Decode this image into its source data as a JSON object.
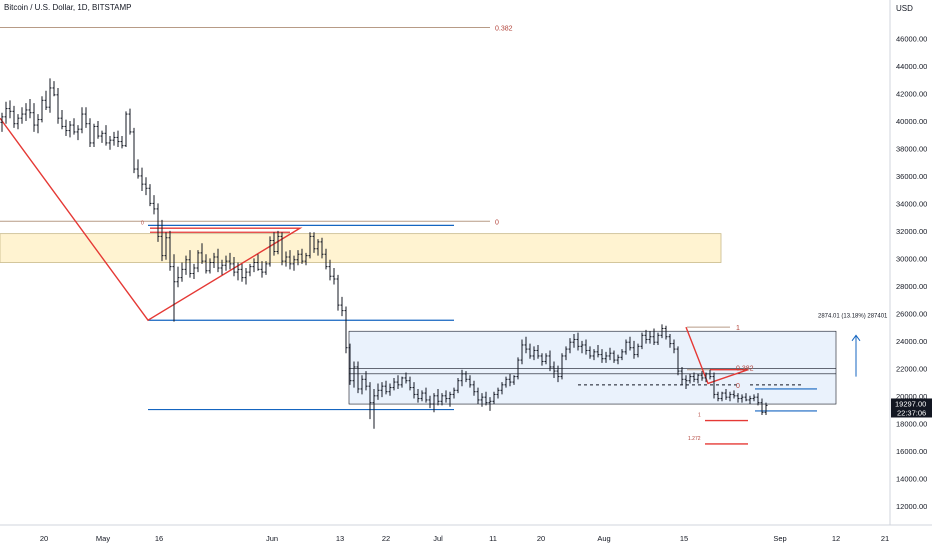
{
  "header": {
    "title": "Bitcoin / U.S. Dollar, 1D, BITSTAMP",
    "currency": "USD"
  },
  "colors": {
    "candle": "#131722",
    "fib_line": "#b79b86",
    "fib_label": "#b2433a",
    "blue_line": "#1565c0",
    "red_line": "#e53935",
    "yellow_zone": "#fff3d1",
    "blue_zone": "#eaf2fc",
    "measure": "#1565c0",
    "price_badge": "#131722"
  },
  "chart_data": {
    "type": "candlestick",
    "instrument": "Bitcoin / U.S. Dollar",
    "interval": "1D",
    "exchange": "BITSTAMP",
    "y_axis": {
      "unit": "USD",
      "range": [
        10600,
        48800
      ],
      "ticks": [
        "46000.00",
        "44000.00",
        "42000.00",
        "40000.00",
        "38000.00",
        "36000.00",
        "34000.00",
        "32000.00",
        "30000.00",
        "28000.00",
        "26000.00",
        "24000.00",
        "22000.00",
        "20000.00",
        "18000.00",
        "16000.00",
        "14000.00",
        "12000.00"
      ]
    },
    "x_axis": {
      "ticks": [
        "20",
        "May",
        "16",
        "Jun",
        "13",
        "22",
        "Jul",
        "11",
        "20",
        "Aug",
        "15",
        "Sep",
        "12",
        "21"
      ]
    },
    "grid": false,
    "last_price": "19297.00",
    "countdown": "22:37:06",
    "candles": [
      [
        39900,
        40600,
        39200,
        40300
      ],
      [
        40300,
        41400,
        39800,
        40900
      ],
      [
        40900,
        41500,
        40200,
        40700
      ],
      [
        40700,
        41100,
        39500,
        39800
      ],
      [
        39800,
        40500,
        39400,
        40200
      ],
      [
        40200,
        41000,
        39800,
        40500
      ],
      [
        40500,
        41300,
        40000,
        40800
      ],
      [
        40800,
        41600,
        40200,
        40600
      ],
      [
        40600,
        41300,
        39200,
        39700
      ],
      [
        39700,
        40500,
        39100,
        40100
      ],
      [
        40100,
        41800,
        39900,
        41500
      ],
      [
        41500,
        42200,
        40800,
        41000
      ],
      [
        41000,
        43100,
        40600,
        42400
      ],
      [
        42400,
        42900,
        41800,
        41900
      ],
      [
        41900,
        42400,
        39800,
        40200
      ],
      [
        40200,
        40800,
        39400,
        39600
      ],
      [
        39600,
        40100,
        38900,
        39300
      ],
      [
        39300,
        40000,
        38800,
        39700
      ],
      [
        39700,
        40200,
        39000,
        39200
      ],
      [
        39200,
        39700,
        38600,
        39400
      ],
      [
        39400,
        41000,
        39100,
        40500
      ],
      [
        40500,
        41000,
        39500,
        39800
      ],
      [
        39800,
        40200,
        38100,
        38400
      ],
      [
        38400,
        39800,
        38100,
        39600
      ],
      [
        39600,
        40000,
        38700,
        38900
      ],
      [
        38900,
        39300,
        38400,
        39100
      ],
      [
        39100,
        39700,
        38200,
        38400
      ],
      [
        38400,
        38900,
        37900,
        38600
      ],
      [
        38600,
        39200,
        38200,
        38800
      ],
      [
        38800,
        39300,
        38100,
        38500
      ],
      [
        38500,
        38900,
        38000,
        38200
      ],
      [
        38200,
        40700,
        38100,
        40500
      ],
      [
        40500,
        40900,
        39000,
        39200
      ],
      [
        39200,
        39500,
        36200,
        36500
      ],
      [
        36500,
        37200,
        35800,
        36000
      ],
      [
        36000,
        36600,
        34900,
        35400
      ],
      [
        35400,
        35900,
        34600,
        35100
      ],
      [
        35100,
        35400,
        33800,
        34000
      ],
      [
        34000,
        34600,
        33200,
        33600
      ],
      [
        33600,
        34000,
        31200,
        31600
      ],
      [
        31600,
        32800,
        29800,
        30200
      ],
      [
        30200,
        31900,
        29900,
        31500
      ],
      [
        31500,
        32000,
        29100,
        29400
      ],
      [
        29400,
        30300,
        25400,
        28300
      ],
      [
        28300,
        29400,
        27900,
        28600
      ],
      [
        28600,
        29700,
        28300,
        29200
      ],
      [
        29200,
        30200,
        28800,
        29900
      ],
      [
        29900,
        30600,
        28600,
        28900
      ],
      [
        28900,
        29600,
        28500,
        29300
      ],
      [
        29300,
        30600,
        29000,
        30400
      ],
      [
        30400,
        31100,
        29600,
        29800
      ],
      [
        29800,
        30300,
        28900,
        29100
      ],
      [
        29100,
        30000,
        28900,
        29700
      ],
      [
        29700,
        30400,
        29300,
        30100
      ],
      [
        30100,
        30700,
        29000,
        29300
      ],
      [
        29300,
        29900,
        28800,
        29500
      ],
      [
        29500,
        30200,
        29100,
        29800
      ],
      [
        29800,
        30400,
        29200,
        29600
      ],
      [
        29600,
        30100,
        28700,
        29000
      ],
      [
        29000,
        29700,
        28400,
        29200
      ],
      [
        29200,
        29600,
        28300,
        28600
      ],
      [
        28600,
        29300,
        28100,
        29000
      ],
      [
        29000,
        29600,
        28700,
        29400
      ],
      [
        29400,
        30000,
        29000,
        29700
      ],
      [
        29700,
        30300,
        29100,
        29200
      ],
      [
        29200,
        29800,
        28600,
        29000
      ],
      [
        29000,
        29800,
        28800,
        29600
      ],
      [
        29600,
        31600,
        29400,
        31300
      ],
      [
        31300,
        31900,
        30200,
        30500
      ],
      [
        30500,
        32000,
        30300,
        31600
      ],
      [
        31600,
        31900,
        29500,
        29800
      ],
      [
        29800,
        30500,
        29400,
        30100
      ],
      [
        30100,
        30600,
        29200,
        29600
      ],
      [
        29600,
        30200,
        29100,
        29900
      ],
      [
        29900,
        30600,
        29500,
        30300
      ],
      [
        30300,
        30700,
        29600,
        29800
      ],
      [
        29800,
        30400,
        29500,
        30200
      ],
      [
        30200,
        31900,
        30000,
        31600
      ],
      [
        31600,
        31900,
        30400,
        30700
      ],
      [
        30700,
        31400,
        30200,
        31200
      ],
      [
        31200,
        31500,
        30000,
        30300
      ],
      [
        30300,
        30700,
        29200,
        29400
      ],
      [
        29400,
        29900,
        28400,
        28700
      ],
      [
        28700,
        29300,
        28100,
        28500
      ],
      [
        28500,
        28800,
        26200,
        26600
      ],
      [
        26600,
        27200,
        25800,
        26200
      ],
      [
        26200,
        26500,
        23100,
        23500
      ],
      [
        23500,
        23800,
        20800,
        21100
      ],
      [
        21100,
        22500,
        20600,
        22100
      ],
      [
        22100,
        22500,
        20200,
        20500
      ],
      [
        20500,
        21500,
        20100,
        21200
      ],
      [
        21200,
        21800,
        20400,
        20700
      ],
      [
        20700,
        21000,
        18300,
        19500
      ],
      [
        19500,
        20500,
        17600,
        20000
      ],
      [
        20000,
        20900,
        19700,
        20400
      ],
      [
        20400,
        21000,
        19900,
        20700
      ],
      [
        20700,
        21100,
        20100,
        20300
      ],
      [
        20300,
        20900,
        20000,
        20600
      ],
      [
        20600,
        21300,
        20400,
        21000
      ],
      [
        21000,
        21500,
        20500,
        20800
      ],
      [
        20800,
        21400,
        20600,
        21300
      ],
      [
        21300,
        21700,
        20900,
        21100
      ],
      [
        21100,
        21400,
        20400,
        20600
      ],
      [
        20600,
        21000,
        19800,
        20100
      ],
      [
        20100,
        20500,
        19500,
        19800
      ],
      [
        19800,
        20400,
        19600,
        20200
      ],
      [
        20200,
        20600,
        19500,
        19700
      ],
      [
        19700,
        20000,
        19100,
        19400
      ],
      [
        19400,
        20200,
        18800,
        20000
      ],
      [
        20000,
        20500,
        19300,
        19600
      ],
      [
        19600,
        20200,
        19300,
        20000
      ],
      [
        20000,
        20400,
        19500,
        19800
      ],
      [
        19800,
        20300,
        19200,
        20100
      ],
      [
        20100,
        20600,
        19800,
        20400
      ],
      [
        20400,
        21300,
        20200,
        21100
      ],
      [
        21100,
        21900,
        20700,
        21600
      ],
      [
        21600,
        21800,
        21000,
        21200
      ],
      [
        21200,
        21500,
        20600,
        20800
      ],
      [
        20800,
        21100,
        20000,
        20300
      ],
      [
        20300,
        20600,
        19400,
        19700
      ],
      [
        19700,
        20200,
        19200,
        19900
      ],
      [
        19900,
        20300,
        19300,
        19500
      ],
      [
        19500,
        19900,
        18900,
        19600
      ],
      [
        19600,
        20300,
        19400,
        20100
      ],
      [
        20100,
        20600,
        19800,
        20400
      ],
      [
        20400,
        21000,
        20100,
        20800
      ],
      [
        20800,
        21400,
        20600,
        21200
      ],
      [
        21200,
        21600,
        20700,
        21000
      ],
      [
        21000,
        21500,
        20800,
        21400
      ],
      [
        21400,
        22800,
        21200,
        22600
      ],
      [
        22600,
        24100,
        22300,
        23700
      ],
      [
        23700,
        24300,
        23100,
        23400
      ],
      [
        23400,
        23800,
        22700,
        22900
      ],
      [
        22900,
        23600,
        22600,
        23300
      ],
      [
        23300,
        23700,
        22700,
        22900
      ],
      [
        22900,
        23100,
        22200,
        22500
      ],
      [
        22500,
        23100,
        22300,
        22900
      ],
      [
        22900,
        23300,
        21800,
        22100
      ],
      [
        22100,
        22500,
        21300,
        21800
      ],
      [
        21800,
        22200,
        21000,
        21400
      ],
      [
        21400,
        23100,
        21200,
        22900
      ],
      [
        22900,
        23600,
        22600,
        23400
      ],
      [
        23400,
        24200,
        23100,
        23900
      ],
      [
        23900,
        24500,
        23500,
        24100
      ],
      [
        24100,
        24600,
        23300,
        23600
      ],
      [
        23600,
        24000,
        23100,
        23700
      ],
      [
        23700,
        24100,
        23000,
        23300
      ],
      [
        23300,
        23600,
        22700,
        22900
      ],
      [
        22900,
        23400,
        22600,
        23200
      ],
      [
        23200,
        23700,
        22800,
        23000
      ],
      [
        23000,
        23400,
        22400,
        22700
      ],
      [
        22700,
        23200,
        22400,
        22900
      ],
      [
        22900,
        23500,
        22600,
        23100
      ],
      [
        23100,
        23300,
        22400,
        22600
      ],
      [
        22600,
        23000,
        22300,
        22800
      ],
      [
        22800,
        23400,
        22600,
        23200
      ],
      [
        23200,
        24100,
        23000,
        23900
      ],
      [
        23900,
        24300,
        23300,
        23500
      ],
      [
        23500,
        24000,
        22700,
        23000
      ],
      [
        23000,
        23800,
        22800,
        23600
      ],
      [
        23600,
        24600,
        23400,
        24400
      ],
      [
        24400,
        24800,
        23800,
        24100
      ],
      [
        24100,
        24700,
        23800,
        24300
      ],
      [
        24300,
        24900,
        23700,
        23900
      ],
      [
        23900,
        24600,
        23700,
        24400
      ],
      [
        24400,
        25200,
        24200,
        24900
      ],
      [
        24900,
        25100,
        24100,
        24300
      ],
      [
        24300,
        24500,
        23500,
        23800
      ],
      [
        23800,
        24100,
        23100,
        23400
      ],
      [
        23400,
        23600,
        21500,
        21800
      ],
      [
        21800,
        22100,
        20800,
        21200
      ],
      [
        21200,
        21500,
        20500,
        21100
      ],
      [
        21100,
        21600,
        20900,
        21400
      ],
      [
        21400,
        21700,
        21000,
        21200
      ],
      [
        21200,
        21600,
        20900,
        21500
      ],
      [
        21500,
        21800,
        21100,
        21300
      ],
      [
        21300,
        21700,
        21000,
        21600
      ],
      [
        21600,
        21900,
        21200,
        21400
      ],
      [
        21400,
        21700,
        19800,
        20100
      ],
      [
        20100,
        20300,
        19600,
        19800
      ],
      [
        19800,
        20300,
        19600,
        20200
      ],
      [
        20200,
        20500,
        19700,
        19900
      ],
      [
        19900,
        20300,
        19600,
        20100
      ],
      [
        20100,
        20400,
        19800,
        20000
      ],
      [
        20000,
        20200,
        19500,
        19800
      ],
      [
        19800,
        20100,
        19500,
        19900
      ],
      [
        19900,
        20200,
        19600,
        19700
      ],
      [
        19700,
        20000,
        19400,
        19800
      ],
      [
        19800,
        20100,
        19600,
        19900
      ],
      [
        19900,
        20200,
        19300,
        19500
      ],
      [
        19500,
        19800,
        18600,
        18800
      ],
      [
        18800,
        19500,
        18600,
        19300
      ]
    ],
    "annotations": {
      "fib_levels": [
        "0.382",
        "0",
        "1",
        "0.382",
        "0",
        "1",
        "1.272"
      ],
      "measure_label": "2874.01 (13.18%) 287401"
    }
  }
}
